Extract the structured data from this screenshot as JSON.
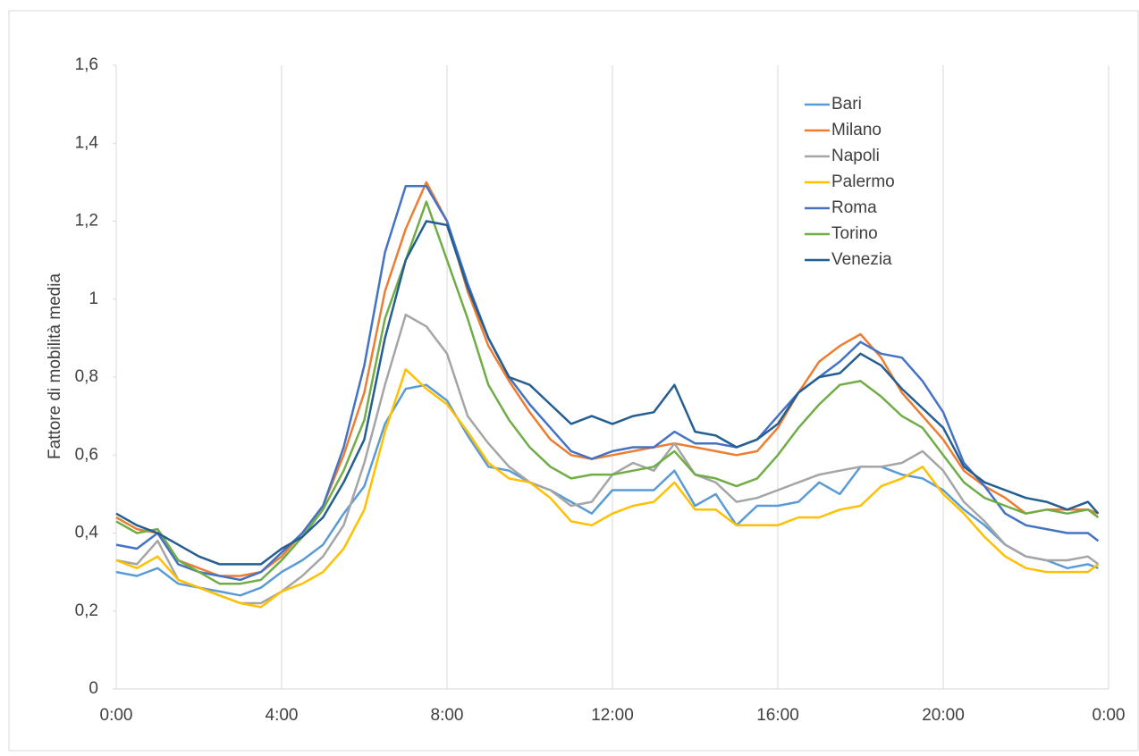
{
  "chart_data": {
    "type": "line",
    "ylabel": "Fattore  di mobilità media",
    "x": [
      0,
      0.5,
      1,
      1.5,
      2,
      2.5,
      3,
      3.5,
      4,
      4.5,
      5,
      5.5,
      6,
      6.5,
      7,
      7.5,
      8,
      8.5,
      9,
      9.5,
      10,
      10.5,
      11,
      11.5,
      12,
      12.5,
      13,
      13.5,
      14,
      14.5,
      15,
      15.5,
      16,
      16.5,
      17,
      17.5,
      18,
      18.5,
      19,
      19.5,
      20,
      20.5,
      21,
      21.5,
      22,
      22.5,
      23,
      23.5,
      23.75
    ],
    "series": [
      {
        "name": "Bari",
        "color": "#5b9bd5",
        "values": [
          0.3,
          0.29,
          0.31,
          0.27,
          0.26,
          0.25,
          0.24,
          0.26,
          0.3,
          0.33,
          0.37,
          0.45,
          0.52,
          0.68,
          0.77,
          0.78,
          0.74,
          0.65,
          0.57,
          0.56,
          0.53,
          0.51,
          0.48,
          0.45,
          0.51,
          0.51,
          0.51,
          0.56,
          0.47,
          0.5,
          0.42,
          0.47,
          0.47,
          0.48,
          0.53,
          0.5,
          0.57,
          0.57,
          0.55,
          0.54,
          0.51,
          0.46,
          0.42,
          0.37,
          0.34,
          0.33,
          0.31,
          0.32,
          0.31
        ]
      },
      {
        "name": "Milano",
        "color": "#ed7d31",
        "values": [
          0.44,
          0.41,
          0.4,
          0.33,
          0.31,
          0.29,
          0.29,
          0.3,
          0.34,
          0.4,
          0.47,
          0.6,
          0.76,
          1.02,
          1.18,
          1.3,
          1.2,
          1.02,
          0.88,
          0.79,
          0.71,
          0.64,
          0.6,
          0.59,
          0.6,
          0.61,
          0.62,
          0.63,
          0.62,
          0.61,
          0.6,
          0.61,
          0.67,
          0.76,
          0.84,
          0.88,
          0.91,
          0.85,
          0.76,
          0.7,
          0.64,
          0.56,
          0.52,
          0.49,
          0.45,
          0.46,
          0.46,
          0.46,
          0.45
        ]
      },
      {
        "name": "Napoli",
        "color": "#a5a5a5",
        "values": [
          0.33,
          0.32,
          0.38,
          0.28,
          0.26,
          0.24,
          0.22,
          0.22,
          0.25,
          0.29,
          0.34,
          0.42,
          0.58,
          0.78,
          0.96,
          0.93,
          0.86,
          0.7,
          0.63,
          0.57,
          0.53,
          0.51,
          0.47,
          0.48,
          0.55,
          0.58,
          0.56,
          0.63,
          0.55,
          0.53,
          0.48,
          0.49,
          0.51,
          0.53,
          0.55,
          0.56,
          0.57,
          0.57,
          0.58,
          0.61,
          0.56,
          0.48,
          0.43,
          0.37,
          0.34,
          0.33,
          0.33,
          0.34,
          0.32
        ]
      },
      {
        "name": "Palermo",
        "color": "#ffc000",
        "values": [
          0.33,
          0.31,
          0.34,
          0.28,
          0.26,
          0.24,
          0.22,
          0.21,
          0.25,
          0.27,
          0.3,
          0.36,
          0.46,
          0.66,
          0.82,
          0.77,
          0.73,
          0.66,
          0.58,
          0.54,
          0.53,
          0.49,
          0.43,
          0.42,
          0.45,
          0.47,
          0.48,
          0.53,
          0.46,
          0.46,
          0.42,
          0.42,
          0.42,
          0.44,
          0.44,
          0.46,
          0.47,
          0.52,
          0.54,
          0.57,
          0.5,
          0.45,
          0.39,
          0.34,
          0.31,
          0.3,
          0.3,
          0.3,
          0.32
        ]
      },
      {
        "name": "Roma",
        "color": "#4472c4",
        "values": [
          0.37,
          0.36,
          0.4,
          0.32,
          0.3,
          0.29,
          0.28,
          0.3,
          0.35,
          0.4,
          0.47,
          0.62,
          0.83,
          1.12,
          1.29,
          1.29,
          1.2,
          1.04,
          0.9,
          0.8,
          0.73,
          0.67,
          0.61,
          0.59,
          0.61,
          0.62,
          0.62,
          0.66,
          0.63,
          0.63,
          0.62,
          0.64,
          0.7,
          0.76,
          0.8,
          0.84,
          0.89,
          0.86,
          0.85,
          0.79,
          0.71,
          0.58,
          0.52,
          0.45,
          0.42,
          0.41,
          0.4,
          0.4,
          0.38
        ]
      },
      {
        "name": "Torino",
        "color": "#70ad47",
        "values": [
          0.43,
          0.4,
          0.41,
          0.33,
          0.3,
          0.27,
          0.27,
          0.28,
          0.33,
          0.39,
          0.46,
          0.56,
          0.69,
          0.95,
          1.1,
          1.25,
          1.1,
          0.95,
          0.78,
          0.69,
          0.62,
          0.57,
          0.54,
          0.55,
          0.55,
          0.56,
          0.57,
          0.61,
          0.55,
          0.54,
          0.52,
          0.54,
          0.6,
          0.67,
          0.73,
          0.78,
          0.79,
          0.75,
          0.7,
          0.67,
          0.6,
          0.53,
          0.49,
          0.47,
          0.45,
          0.46,
          0.45,
          0.46,
          0.44
        ]
      },
      {
        "name": "Venezia",
        "color": "#255e91",
        "values": [
          0.45,
          0.42,
          0.4,
          0.37,
          0.34,
          0.32,
          0.32,
          0.32,
          0.36,
          0.39,
          0.44,
          0.53,
          0.64,
          0.9,
          1.1,
          1.2,
          1.19,
          1.03,
          0.9,
          0.8,
          0.78,
          0.73,
          0.68,
          0.7,
          0.68,
          0.7,
          0.71,
          0.78,
          0.66,
          0.65,
          0.62,
          0.64,
          0.68,
          0.76,
          0.8,
          0.81,
          0.86,
          0.83,
          0.77,
          0.72,
          0.67,
          0.57,
          0.53,
          0.51,
          0.49,
          0.48,
          0.46,
          0.48,
          0.45
        ]
      }
    ],
    "xlim": [
      0,
      24
    ],
    "xticks": [
      {
        "value": 0,
        "label": "0:00"
      },
      {
        "value": 4,
        "label": "4:00"
      },
      {
        "value": 8,
        "label": "8:00"
      },
      {
        "value": 12,
        "label": "12:00"
      },
      {
        "value": 16,
        "label": "16:00"
      },
      {
        "value": 20,
        "label": "20:00"
      },
      {
        "value": 24,
        "label": "0:00"
      }
    ],
    "ylim": [
      0,
      1.6
    ],
    "yticks": [
      0,
      {
        "value": 0.2,
        "label": "0,2"
      },
      {
        "value": 0.4,
        "label": "0,4"
      },
      {
        "value": 0.6,
        "label": "0,6"
      },
      {
        "value": 0.8,
        "label": "0,8"
      },
      1,
      {
        "value": 1.2,
        "label": "1,2"
      },
      {
        "value": 1.4,
        "label": "1,4"
      },
      {
        "value": 1.6,
        "label": "1,6"
      }
    ],
    "xgrid": true,
    "legend": "top-right"
  }
}
